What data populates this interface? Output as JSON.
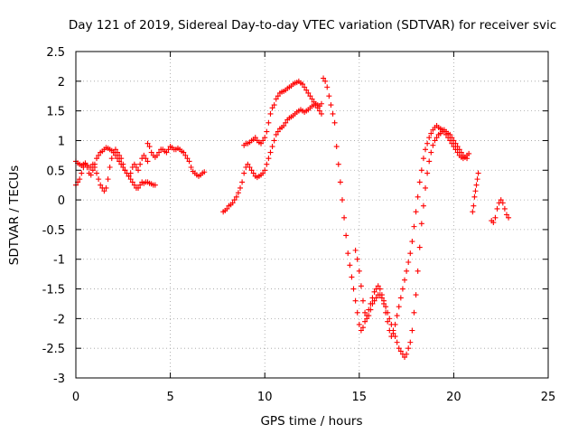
{
  "chart_data": {
    "type": "scatter",
    "title": "Day 121 of 2019, Sidereal Day-to-day VTEC variation (SDTVAR) for receiver svic",
    "xlabel": "GPS time / hours",
    "ylabel": "SDTVAR / TECUs",
    "xlim": [
      0,
      25
    ],
    "ylim": [
      -3,
      2.5
    ],
    "xticks": [
      "0",
      "5",
      "10",
      "15",
      "20",
      "25"
    ],
    "yticks": [
      "2.5",
      "2",
      "1.5",
      "1",
      "0.5",
      "0",
      "-0.5",
      "-1",
      "-1.5",
      "-2",
      "-2.5",
      "-3"
    ],
    "grid": true,
    "marker": "+",
    "color": "#ff0000",
    "series": [
      {
        "x": [
          0.0,
          0.1,
          0.2,
          0.3,
          0.4,
          0.5,
          0.6,
          0.7,
          0.8,
          0.9,
          1.0,
          1.1,
          1.2,
          1.3,
          1.4,
          1.5,
          1.6,
          1.7,
          1.8,
          1.9,
          2.0,
          2.1,
          2.2,
          2.3,
          2.4,
          2.5,
          2.6,
          2.7,
          2.8,
          2.9,
          3.0,
          3.1,
          3.2,
          3.3,
          3.4,
          3.5,
          3.6,
          3.7,
          3.8,
          3.9,
          4.0,
          4.1,
          4.2
        ],
        "y": [
          0.25,
          0.3,
          0.35,
          0.45,
          0.55,
          0.6,
          0.55,
          0.45,
          0.42,
          0.5,
          0.6,
          0.7,
          0.75,
          0.8,
          0.82,
          0.85,
          0.88,
          0.87,
          0.85,
          0.83,
          0.8,
          0.75,
          0.7,
          0.65,
          0.6,
          0.55,
          0.5,
          0.45,
          0.4,
          0.35,
          0.3,
          0.25,
          0.2,
          0.2,
          0.25,
          0.3,
          0.28,
          0.3,
          0.3,
          0.28,
          0.27,
          0.25,
          0.25
        ]
      },
      {
        "x": [
          0.0,
          0.1,
          0.2,
          0.3,
          0.4,
          0.5,
          0.6,
          0.7,
          0.8,
          0.9,
          1.0,
          1.1,
          1.2,
          1.3,
          1.4,
          1.5,
          1.6,
          1.7,
          1.8,
          1.9,
          2.0,
          2.1,
          2.2,
          2.3,
          2.4,
          2.5,
          2.6,
          2.7,
          2.8,
          2.9,
          3.0,
          3.1,
          3.2,
          3.3,
          3.4,
          3.5,
          3.6,
          3.7,
          3.8
        ],
        "y": [
          0.65,
          0.62,
          0.6,
          0.58,
          0.6,
          0.62,
          0.58,
          0.55,
          0.55,
          0.6,
          0.55,
          0.45,
          0.35,
          0.25,
          0.2,
          0.15,
          0.2,
          0.35,
          0.55,
          0.7,
          0.8,
          0.85,
          0.8,
          0.75,
          0.7,
          0.6,
          0.5,
          0.45,
          0.4,
          0.45,
          0.55,
          0.6,
          0.55,
          0.5,
          0.6,
          0.7,
          0.75,
          0.7,
          0.65
        ]
      },
      {
        "x": [
          3.8,
          3.9,
          4.0,
          4.1,
          4.2,
          4.3,
          4.4,
          4.5,
          4.6,
          4.7,
          4.8,
          4.9,
          5.0,
          5.1,
          5.2,
          5.3,
          5.4,
          5.5,
          5.6,
          5.7,
          5.8,
          5.9,
          6.0,
          6.1,
          6.2,
          6.3,
          6.4,
          6.5,
          6.6,
          6.7,
          6.8
        ],
        "y": [
          0.95,
          0.9,
          0.8,
          0.75,
          0.72,
          0.75,
          0.8,
          0.85,
          0.85,
          0.82,
          0.8,
          0.85,
          0.9,
          0.88,
          0.85,
          0.85,
          0.87,
          0.85,
          0.82,
          0.8,
          0.75,
          0.7,
          0.65,
          0.55,
          0.48,
          0.45,
          0.42,
          0.4,
          0.42,
          0.45,
          0.47
        ]
      },
      {
        "x": [
          7.8,
          7.9,
          8.0,
          8.1,
          8.2,
          8.3,
          8.4,
          8.5,
          8.6,
          8.7,
          8.8,
          8.9,
          9.0,
          9.1,
          9.2,
          9.3,
          9.4,
          9.5,
          9.6,
          9.7,
          9.8,
          9.9,
          10.0,
          10.1,
          10.2,
          10.3,
          10.4,
          10.5,
          10.6,
          10.7,
          10.8,
          10.9,
          11.0,
          11.1,
          11.2,
          11.3,
          11.4,
          11.5,
          11.6,
          11.7,
          11.8,
          11.9,
          12.0,
          12.1,
          12.2,
          12.3,
          12.4,
          12.5,
          12.6,
          12.7,
          12.8,
          12.9,
          13.0
        ],
        "y": [
          -0.2,
          -0.18,
          -0.15,
          -0.1,
          -0.08,
          -0.05,
          0.0,
          0.05,
          0.12,
          0.2,
          0.3,
          0.45,
          0.55,
          0.6,
          0.55,
          0.5,
          0.45,
          0.4,
          0.38,
          0.4,
          0.42,
          0.45,
          0.5,
          0.6,
          0.7,
          0.8,
          0.9,
          1.0,
          1.1,
          1.15,
          1.2,
          1.22,
          1.25,
          1.3,
          1.35,
          1.38,
          1.4,
          1.42,
          1.45,
          1.48,
          1.5,
          1.52,
          1.5,
          1.48,
          1.5,
          1.52,
          1.55,
          1.58,
          1.6,
          1.62,
          1.6,
          1.58,
          1.62
        ]
      },
      {
        "x": [
          8.9,
          9.0,
          9.1,
          9.2,
          9.3,
          9.4,
          9.5,
          9.6,
          9.7,
          9.8,
          9.9,
          10.0,
          10.1,
          10.2,
          10.3,
          10.4,
          10.5,
          10.6,
          10.7,
          10.8,
          10.9,
          11.0,
          11.1,
          11.2,
          11.3,
          11.4,
          11.5,
          11.6,
          11.7,
          11.8,
          11.9,
          12.0,
          12.1,
          12.2,
          12.3,
          12.4,
          12.5,
          12.6,
          12.7,
          12.8,
          12.9,
          13.0
        ],
        "y": [
          0.92,
          0.95,
          0.95,
          0.97,
          1.0,
          1.02,
          1.05,
          1.0,
          0.97,
          0.95,
          1.0,
          1.05,
          1.15,
          1.3,
          1.45,
          1.55,
          1.6,
          1.7,
          1.75,
          1.8,
          1.82,
          1.83,
          1.85,
          1.88,
          1.9,
          1.92,
          1.95,
          1.97,
          1.98,
          2.0,
          1.97,
          1.95,
          1.9,
          1.85,
          1.8,
          1.75,
          1.7,
          1.65,
          1.6,
          1.55,
          1.5,
          1.45
        ]
      },
      {
        "x": [
          13.1,
          13.2,
          13.3,
          13.4,
          13.5,
          13.6,
          13.7,
          13.8,
          13.9,
          14.0,
          14.1,
          14.2,
          14.3,
          14.4,
          14.5,
          14.6,
          14.7,
          14.8,
          14.9,
          15.0,
          15.1,
          15.2,
          15.3,
          15.4,
          15.5,
          15.6,
          15.7,
          15.8,
          15.9,
          16.0,
          16.1,
          16.2,
          16.3,
          16.4,
          16.5,
          16.6,
          16.7,
          16.8,
          16.9,
          17.0,
          17.1,
          17.2,
          17.3,
          17.4,
          17.5,
          17.6,
          17.7,
          17.8,
          17.9,
          18.0,
          18.1,
          18.2,
          18.3,
          18.4,
          18.5,
          18.6,
          18.7,
          18.8,
          18.9,
          19.0,
          19.1,
          19.2,
          19.3,
          19.4,
          19.5,
          19.6,
          19.7,
          19.8,
          19.9,
          20.0,
          20.1,
          20.2,
          20.3,
          20.4,
          20.5,
          20.6,
          20.7,
          20.8
        ],
        "y": [
          2.05,
          2.0,
          1.9,
          1.75,
          1.6,
          1.45,
          1.3,
          0.9,
          0.6,
          0.3,
          0.0,
          -0.3,
          -0.6,
          -0.9,
          -1.1,
          -1.3,
          -1.5,
          -1.7,
          -1.9,
          -2.1,
          -2.2,
          -2.15,
          -2.05,
          -1.95,
          -1.85,
          -1.75,
          -1.65,
          -1.55,
          -1.5,
          -1.45,
          -1.5,
          -1.6,
          -1.75,
          -1.9,
          -2.05,
          -2.2,
          -2.3,
          -2.25,
          -2.1,
          -1.95,
          -1.8,
          -1.65,
          -1.5,
          -1.35,
          -1.2,
          -1.05,
          -0.9,
          -0.7,
          -0.45,
          -0.2,
          0.05,
          0.3,
          0.5,
          0.7,
          0.85,
          0.95,
          1.05,
          1.12,
          1.18,
          1.22,
          1.25,
          1.22,
          1.2,
          1.18,
          1.15,
          1.1,
          1.05,
          1.0,
          0.95,
          0.9,
          0.85,
          0.8,
          0.75,
          0.72,
          0.7,
          0.72,
          0.75,
          0.78
        ]
      },
      {
        "x": [
          14.8,
          14.9,
          15.0,
          15.1,
          15.2,
          15.3,
          15.4,
          15.5,
          15.6,
          15.7,
          15.8,
          15.9,
          16.0,
          16.1,
          16.2,
          16.3,
          16.4,
          16.5,
          16.6,
          16.7,
          16.8,
          16.9,
          17.0,
          17.1,
          17.2,
          17.3,
          17.4,
          17.5,
          17.6,
          17.7,
          17.8,
          17.9,
          18.0,
          18.1,
          18.2,
          18.3,
          18.4,
          18.5,
          18.6,
          18.7,
          18.8,
          18.9,
          19.0,
          19.1,
          19.2,
          19.3,
          19.4,
          19.5,
          19.6,
          19.7,
          19.8,
          19.9,
          20.0,
          20.1,
          20.2,
          20.3,
          20.4,
          20.5,
          20.6,
          20.7
        ],
        "y": [
          -0.85,
          -1.0,
          -1.2,
          -1.45,
          -1.7,
          -1.9,
          -2.0,
          -1.95,
          -1.85,
          -1.75,
          -1.7,
          -1.65,
          -1.6,
          -1.6,
          -1.65,
          -1.7,
          -1.8,
          -1.9,
          -2.0,
          -2.1,
          -2.2,
          -2.3,
          -2.4,
          -2.5,
          -2.55,
          -2.6,
          -2.65,
          -2.6,
          -2.5,
          -2.4,
          -2.2,
          -1.9,
          -1.6,
          -1.2,
          -0.8,
          -0.4,
          -0.1,
          0.2,
          0.45,
          0.65,
          0.8,
          0.92,
          1.0,
          1.05,
          1.1,
          1.12,
          1.15,
          1.18,
          1.15,
          1.12,
          1.1,
          1.05,
          1.0,
          0.95,
          0.9,
          0.85,
          0.8,
          0.75,
          0.72,
          0.7
        ]
      },
      {
        "x": [
          21.0,
          21.05,
          21.1,
          21.15,
          21.2,
          21.25,
          21.3
        ],
        "y": [
          -0.2,
          -0.1,
          0.05,
          0.15,
          0.25,
          0.35,
          0.45
        ]
      },
      {
        "x": [
          22.0,
          22.1,
          22.2,
          22.3,
          22.4,
          22.5,
          22.6,
          22.7,
          22.8,
          22.9
        ],
        "y": [
          -0.35,
          -0.38,
          -0.3,
          -0.15,
          -0.05,
          0.0,
          -0.05,
          -0.15,
          -0.25,
          -0.3
        ]
      }
    ]
  }
}
